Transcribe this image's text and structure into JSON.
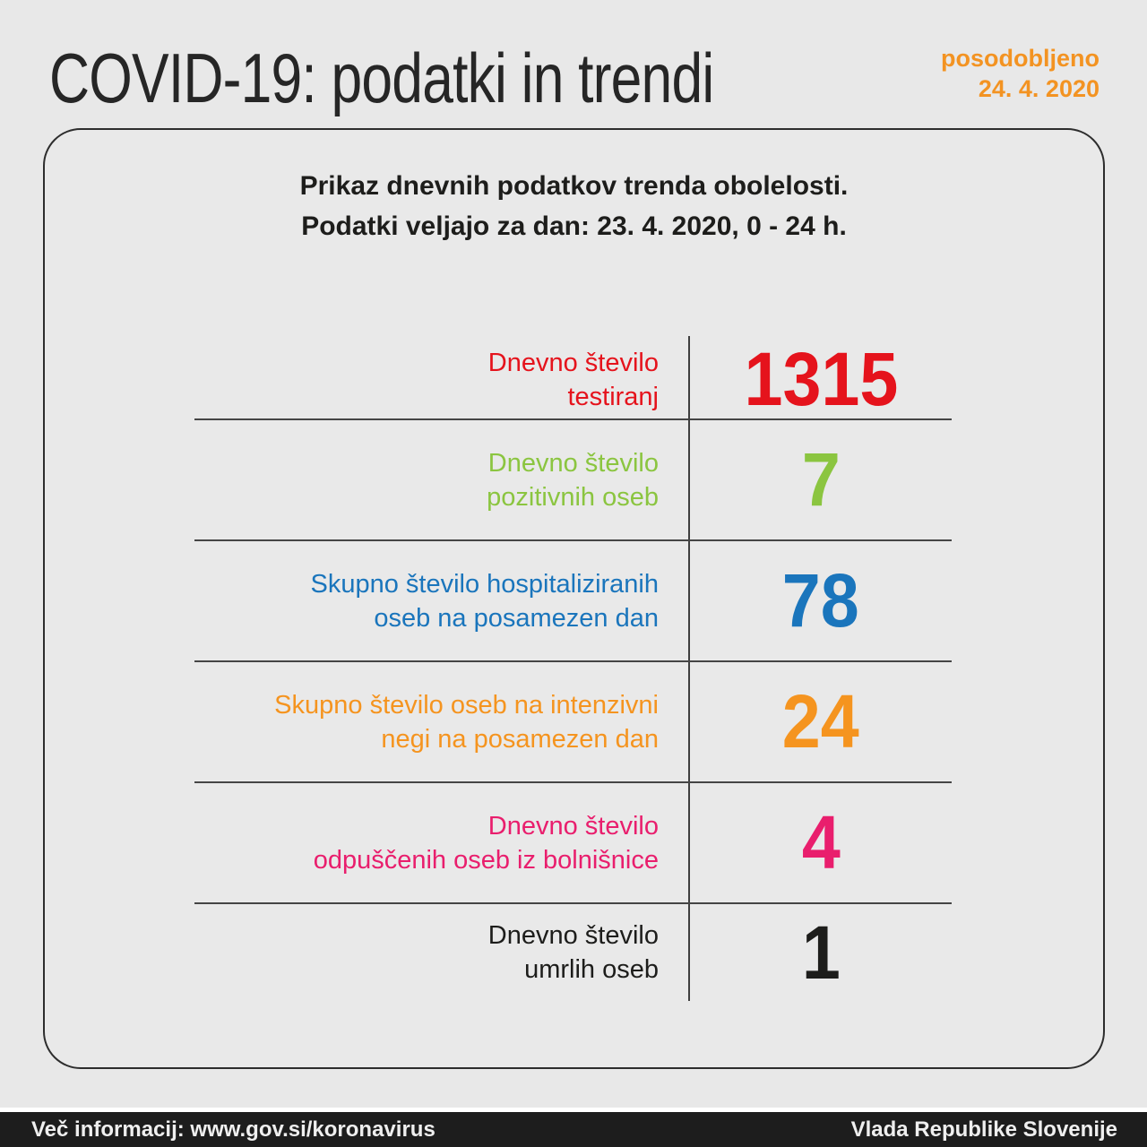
{
  "page": {
    "title": "COVID-19: podatki in trendi",
    "updated_label": "posodobljeno",
    "updated_date": "24. 4. 2020"
  },
  "card": {
    "heading_line1": "Prikaz dnevnih podatkov trenda obolelosti.",
    "heading_line2": "Podatki veljajo za dan: 23. 4. 2020, 0 - 24 h."
  },
  "stats": [
    {
      "label_line1": "Dnevno število",
      "label_line2": "testiranj",
      "value": "1315",
      "color": "#e5131c"
    },
    {
      "label_line1": "Dnevno število",
      "label_line2": "pozitivnih oseb",
      "value": "7",
      "color": "#8bc540"
    },
    {
      "label_line1": "Skupno število hospitaliziranih",
      "label_line2": "oseb na posamezen dan",
      "value": "78",
      "color": "#1a75bc"
    },
    {
      "label_line1": "Skupno število oseb na intenzivni",
      "label_line2": "negi na posamezen dan",
      "value": "24",
      "color": "#f5941f"
    },
    {
      "label_line1": "Dnevno število",
      "label_line2": "odpuščenih oseb iz bolnišnice",
      "value": "4",
      "color": "#e91e6d"
    },
    {
      "label_line1": "Dnevno število",
      "label_line2": "umrlih oseb",
      "value": "1",
      "color": "#1d1d1b"
    }
  ],
  "footer": {
    "left": "Več informacij: www.gov.si/koronavirus",
    "right": "Vlada Republike Slovenije"
  },
  "colors": {
    "accent_orange": "#f39322",
    "background": "#e8e8e8",
    "card_border": "#2d2d2d",
    "separator": "#454545",
    "footer_bg": "#1d1d1d",
    "title_text": "#262626"
  },
  "chart_data": {
    "type": "table",
    "title": "COVID-19: podatki in trendi",
    "subtitle": "Prikaz dnevnih podatkov trenda obolelosti. Podatki veljajo za dan: 23. 4. 2020, 0 - 24 h.",
    "updated": "posodobljeno 24. 4. 2020",
    "categories": [
      "Dnevno število testiranj",
      "Dnevno število pozitivnih oseb",
      "Skupno število hospitaliziranih oseb na posamezen dan",
      "Skupno število oseb na intenzivni negi na posamezen dan",
      "Dnevno število odpuščenih oseb iz bolnišnice",
      "Dnevno število umrlih oseb"
    ],
    "values": [
      1315,
      7,
      78,
      24,
      4,
      1
    ],
    "colors": [
      "#e5131c",
      "#8bc540",
      "#1a75bc",
      "#f5941f",
      "#e91e6d",
      "#1d1d1b"
    ]
  }
}
